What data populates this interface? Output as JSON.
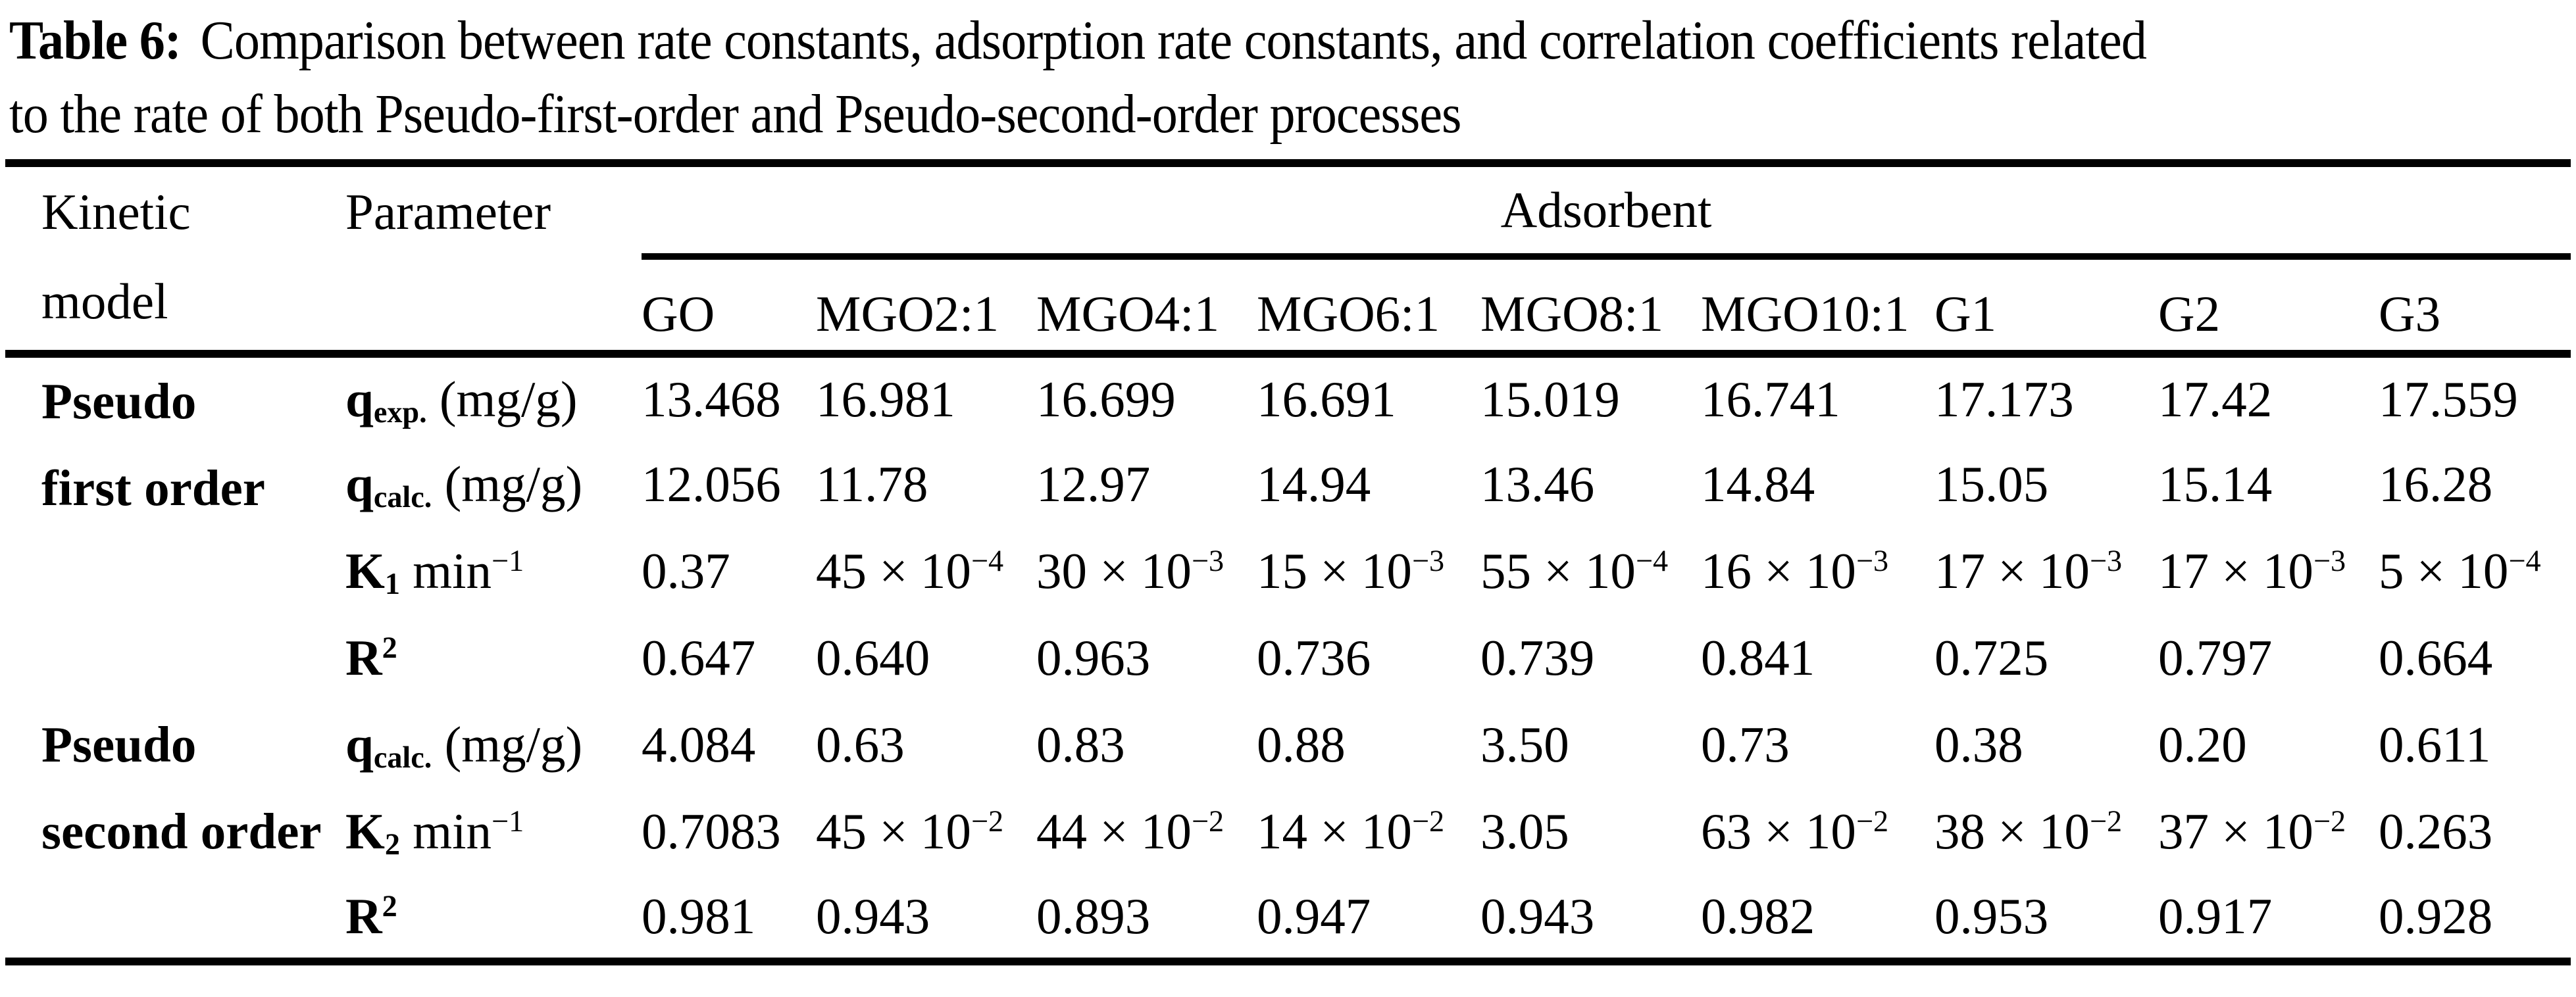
{
  "title": {
    "label": "Table 6:",
    "line1": "Comparison between rate constants, adsorption rate constants, and correlation coefficients related",
    "line2": "to the rate of both Pseudo-first-order and Pseudo-second-order processes"
  },
  "table": {
    "headers": {
      "kinetic_line1": "Kinetic",
      "kinetic_line2": "model",
      "parameter": "Parameter",
      "adsorbent": "Adsorbent"
    },
    "adsorbents": [
      "GO",
      "MGO2:1",
      "MGO4:1",
      "MGO6:1",
      "MGO8:1",
      "MGO10:1",
      "G1",
      "G2",
      "G3"
    ],
    "groups": [
      {
        "line1": "Pseudo",
        "line2": "first order",
        "rows": [
          {
            "param": {
              "sym": "q",
              "sub": "exp.",
              "unit": " (mg/g)"
            },
            "values": [
              "13.468",
              "16.981",
              "16.699",
              "16.691",
              "15.019",
              "16.741",
              "17.173",
              "17.42",
              "17.559"
            ]
          },
          {
            "param": {
              "sym": "q",
              "sub": "calc.",
              "unit": " (mg/g)"
            },
            "values": [
              "12.056",
              "11.78",
              "12.97",
              "14.94",
              "13.46",
              "14.84",
              "15.05",
              "15.14",
              "16.28"
            ]
          },
          {
            "param": {
              "sym": "K",
              "sub": "1",
              "unit": " min",
              "sup": "−1"
            },
            "values": [
              {
                "m": "0.37"
              },
              {
                "m": "45",
                "e": "−4"
              },
              {
                "m": "30",
                "e": "−3"
              },
              {
                "m": "15",
                "e": "−3"
              },
              {
                "m": "55",
                "e": "−4"
              },
              {
                "m": "16",
                "e": "−3"
              },
              {
                "m": "17",
                "e": "−3"
              },
              {
                "m": "17",
                "e": "−3"
              },
              {
                "m": "5",
                "e": "−4"
              }
            ]
          },
          {
            "param": {
              "sym": "R",
              "supb": "2"
            },
            "values": [
              "0.647",
              "0.640",
              "0.963",
              "0.736",
              "0.739",
              "0.841",
              "0.725",
              "0.797",
              "0.664"
            ]
          }
        ]
      },
      {
        "line1": "Pseudo",
        "line2": "second order",
        "rows": [
          {
            "param": {
              "sym": "q",
              "sub": "calc.",
              "unit": " (mg/g)"
            },
            "values": [
              "4.084",
              "0.63",
              "0.83",
              "0.88",
              "3.50",
              "0.73",
              "0.38",
              "0.20",
              "0.611"
            ]
          },
          {
            "param": {
              "sym": "K",
              "sub": "2",
              "unit": " min",
              "sup": "−1"
            },
            "values": [
              {
                "m": "0.7083"
              },
              {
                "m": "45",
                "e": "−2"
              },
              {
                "m": "44",
                "e": "−2"
              },
              {
                "m": "14",
                "e": "−2"
              },
              {
                "m": "3.05"
              },
              {
                "m": "63",
                "e": "−2"
              },
              {
                "m": "38",
                "e": "−2"
              },
              {
                "m": "37",
                "e": "−2"
              },
              {
                "m": "0.263"
              }
            ]
          },
          {
            "param": {
              "sym": "R",
              "supb": "2"
            },
            "values": [
              "0.981",
              "0.943",
              "0.893",
              "0.947",
              "0.943",
              "0.982",
              "0.953",
              "0.917",
              "0.928"
            ]
          }
        ]
      }
    ]
  }
}
